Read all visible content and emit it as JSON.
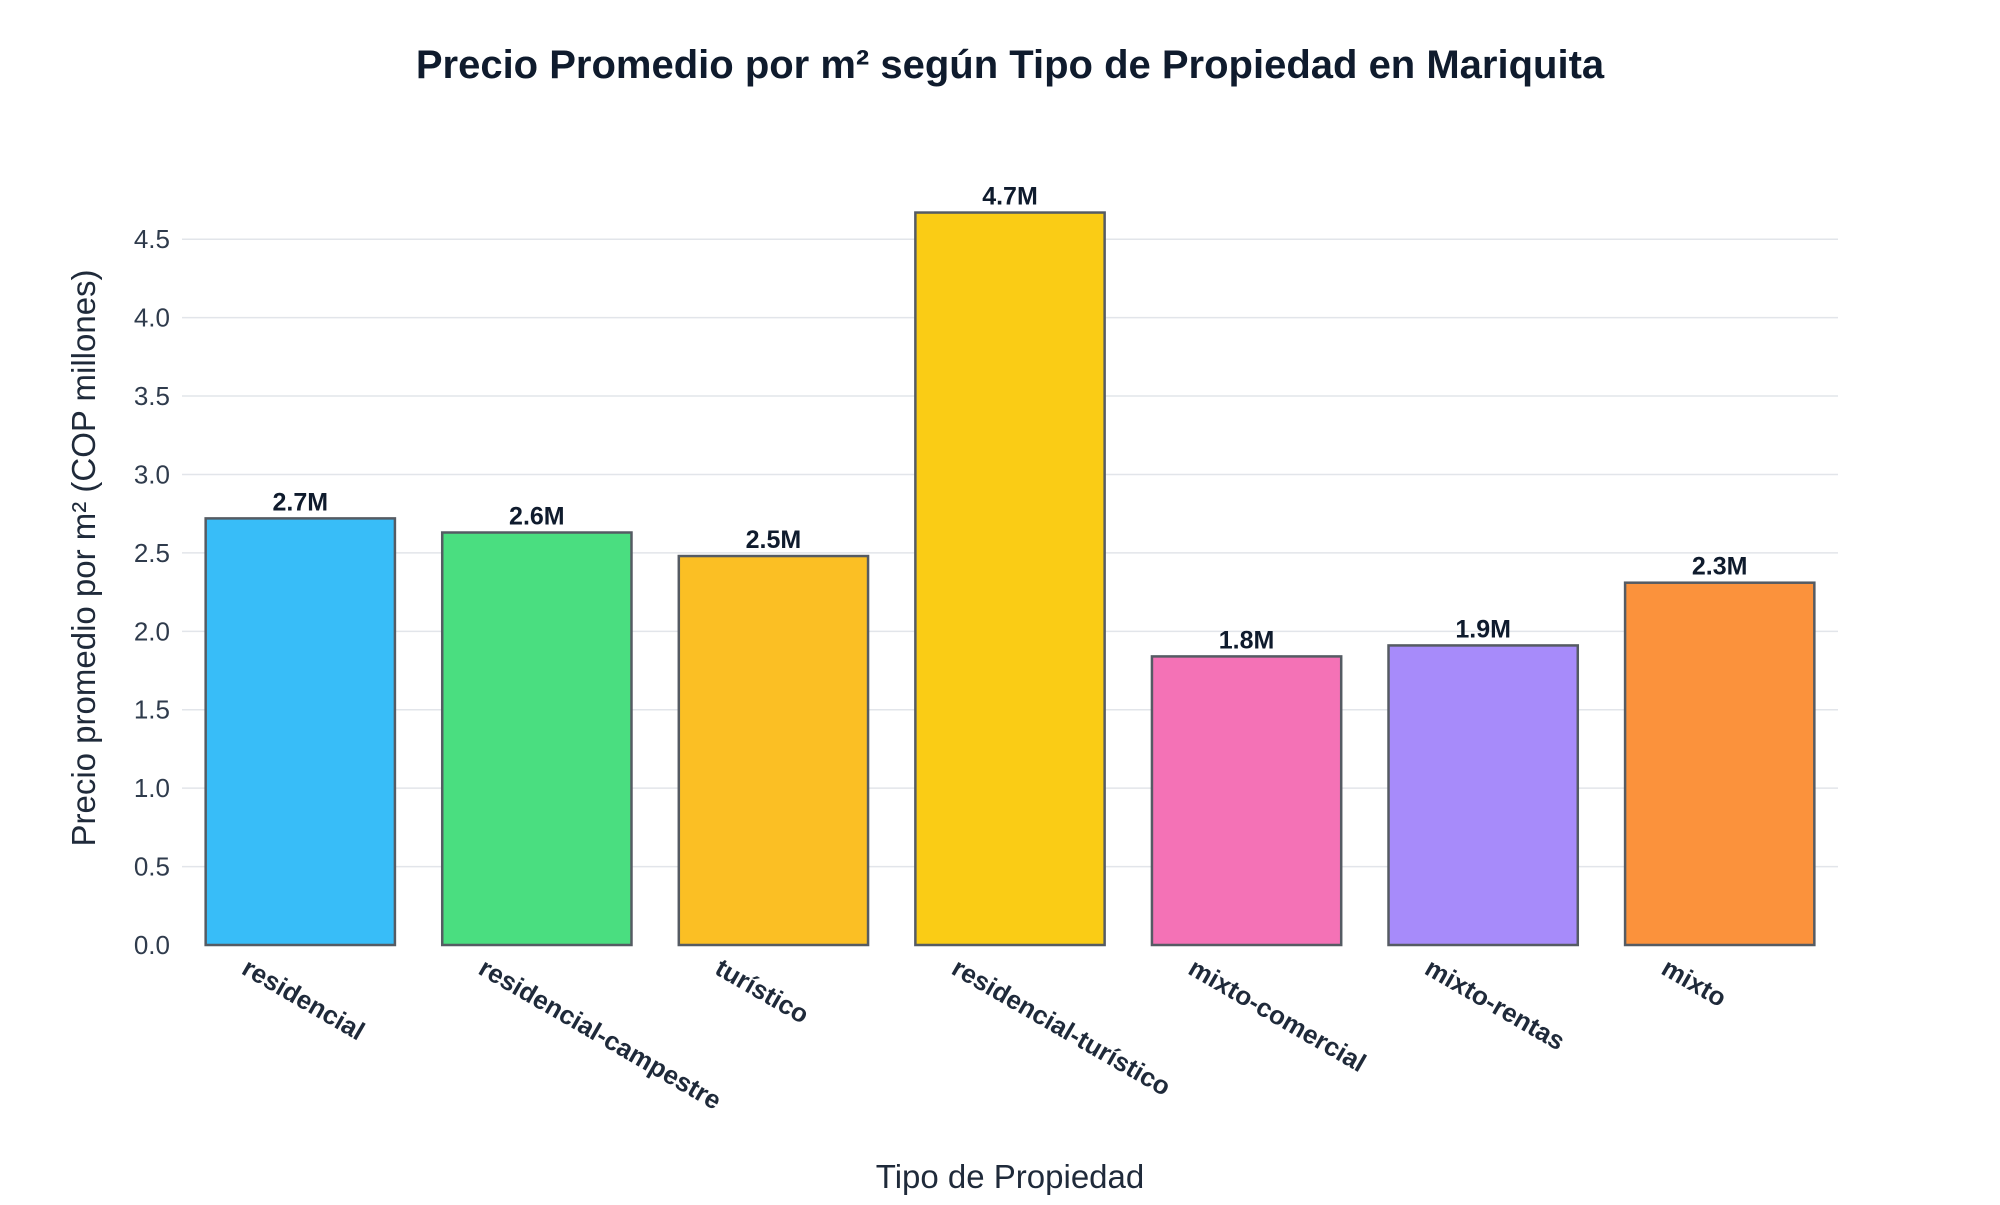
{
  "chart_data": {
    "type": "bar",
    "title": "Precio Promedio por m² según Tipo de Propiedad en Mariquita",
    "xlabel": "Tipo de Propiedad",
    "ylabel": "Precio promedio por m² (COP millones)",
    "categories": [
      "residencial",
      "residencial-campestre",
      "turístico",
      "residencial-turístico",
      "mixto-comercial",
      "mixto-rentas",
      "mixto"
    ],
    "values": [
      2.72,
      2.63,
      2.48,
      4.67,
      1.84,
      1.91,
      2.31
    ],
    "data_labels": [
      "2.7M",
      "2.6M",
      "2.5M",
      "4.7M",
      "1.8M",
      "1.9M",
      "2.3M"
    ],
    "colors": [
      "#38bdf8",
      "#4ade80",
      "#fbbf24",
      "#facc15",
      "#f472b6",
      "#a78bfa",
      "#fb923c"
    ],
    "ylim": [
      0,
      4.75
    ],
    "yticks": [
      "0.0",
      "0.5",
      "1.0",
      "1.5",
      "2.0",
      "2.5",
      "3.0",
      "3.5",
      "4.0",
      "4.5"
    ],
    "grid": true,
    "legend": "none"
  }
}
